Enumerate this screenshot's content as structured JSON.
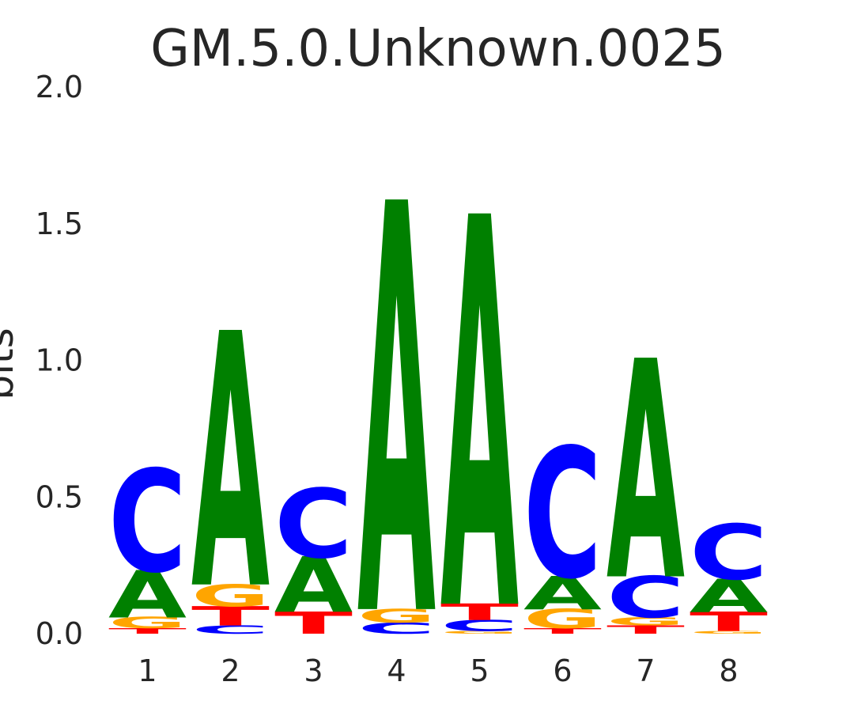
{
  "chart_data": {
    "type": "sequence-logo",
    "title": "GM.5.0.Unknown.0025",
    "ylabel": "bits",
    "xlabel": "",
    "ylim": [
      0,
      2
    ],
    "yticks": [
      "0.0",
      "0.5",
      "1.0",
      "1.5",
      "2.0"
    ],
    "grid": false,
    "colors": {
      "A": "#008000",
      "C": "#0000ff",
      "G": "#ffa500",
      "T": "#ff0000"
    },
    "positions": [
      {
        "label": "1",
        "letters": [
          {
            "base": "T",
            "bits": 0.02
          },
          {
            "base": "G",
            "bits": 0.04
          },
          {
            "base": "A",
            "bits": 0.17
          },
          {
            "base": "C",
            "bits": 0.37
          }
        ]
      },
      {
        "label": "2",
        "letters": [
          {
            "base": "C",
            "bits": 0.03
          },
          {
            "base": "T",
            "bits": 0.07
          },
          {
            "base": "G",
            "bits": 0.08
          },
          {
            "base": "A",
            "bits": 0.92
          }
        ]
      },
      {
        "label": "3",
        "letters": [
          {
            "base": "T",
            "bits": 0.08
          },
          {
            "base": "A",
            "bits": 0.2
          },
          {
            "base": "C",
            "bits": 0.25
          }
        ]
      },
      {
        "label": "4",
        "letters": [
          {
            "base": "C",
            "bits": 0.04
          },
          {
            "base": "G",
            "bits": 0.05
          },
          {
            "base": "A",
            "bits": 1.48
          }
        ]
      },
      {
        "label": "5",
        "letters": [
          {
            "base": "G",
            "bits": 0.01
          },
          {
            "base": "C",
            "bits": 0.04
          },
          {
            "base": "T",
            "bits": 0.06
          },
          {
            "base": "A",
            "bits": 1.41
          }
        ]
      },
      {
        "label": "6",
        "letters": [
          {
            "base": "T",
            "bits": 0.02
          },
          {
            "base": "G",
            "bits": 0.07
          },
          {
            "base": "A",
            "bits": 0.12
          },
          {
            "base": "C",
            "bits": 0.47
          }
        ]
      },
      {
        "label": "7",
        "letters": [
          {
            "base": "T",
            "bits": 0.03
          },
          {
            "base": "G",
            "bits": 0.03
          },
          {
            "base": "C",
            "bits": 0.15
          },
          {
            "base": "A",
            "bits": 0.79
          }
        ]
      },
      {
        "label": "8",
        "letters": [
          {
            "base": "G",
            "bits": 0.01
          },
          {
            "base": "T",
            "bits": 0.07
          },
          {
            "base": "A",
            "bits": 0.12
          },
          {
            "base": "C",
            "bits": 0.2
          }
        ]
      }
    ]
  }
}
